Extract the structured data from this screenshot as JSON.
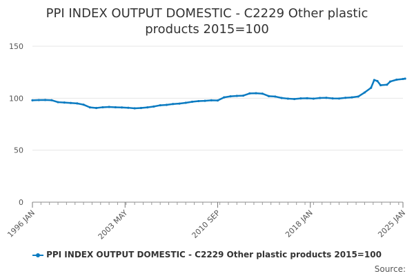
{
  "chart_data": {
    "type": "line",
    "title": "PPI INDEX OUTPUT DOMESTIC - C2229 Other plastic products 2015=100",
    "xlabel": "",
    "ylabel": "",
    "ylim": [
      0,
      150
    ],
    "yticks": [
      "0",
      "50",
      "100",
      "150"
    ],
    "x_tick_labels": [
      "1996 JAN",
      "2003 MAY",
      "2010 SEP",
      "2018 JAN",
      "2025 JAN"
    ],
    "grid": true,
    "legend_position": "bottom",
    "color": "#0b7bc1",
    "source_label": "Source:",
    "series": [
      {
        "name": "PPI INDEX OUTPUT DOMESTIC - C2229 Other plastic products 2015=100",
        "points": [
          [
            "1996-01",
            98.0
          ],
          [
            "1996-07",
            98.2
          ],
          [
            "1997-01",
            98.3
          ],
          [
            "1997-07",
            98.1
          ],
          [
            "1998-01",
            96.2
          ],
          [
            "1998-07",
            95.8
          ],
          [
            "1999-01",
            95.4
          ],
          [
            "1999-07",
            95.0
          ],
          [
            "2000-01",
            93.8
          ],
          [
            "2000-07",
            91.2
          ],
          [
            "2001-01",
            90.6
          ],
          [
            "2001-07",
            91.3
          ],
          [
            "2002-01",
            91.6
          ],
          [
            "2002-07",
            91.3
          ],
          [
            "2003-01",
            91.1
          ],
          [
            "2003-07",
            90.8
          ],
          [
            "2004-01",
            90.3
          ],
          [
            "2004-07",
            90.6
          ],
          [
            "2005-01",
            91.2
          ],
          [
            "2005-07",
            92.0
          ],
          [
            "2006-01",
            93.2
          ],
          [
            "2006-07",
            93.6
          ],
          [
            "2007-01",
            94.4
          ],
          [
            "2007-07",
            94.8
          ],
          [
            "2008-01",
            95.6
          ],
          [
            "2008-07",
            96.6
          ],
          [
            "2009-01",
            97.2
          ],
          [
            "2009-07",
            97.5
          ],
          [
            "2010-01",
            98.0
          ],
          [
            "2010-07",
            97.8
          ],
          [
            "2011-01",
            100.8
          ],
          [
            "2011-07",
            101.8
          ],
          [
            "2012-01",
            102.2
          ],
          [
            "2012-07",
            102.5
          ],
          [
            "2013-01",
            104.6
          ],
          [
            "2013-07",
            104.8
          ],
          [
            "2014-01",
            104.4
          ],
          [
            "2014-07",
            102.0
          ],
          [
            "2015-01",
            101.6
          ],
          [
            "2015-07",
            100.2
          ],
          [
            "2016-01",
            99.6
          ],
          [
            "2016-07",
            99.2
          ],
          [
            "2017-01",
            99.8
          ],
          [
            "2017-07",
            100.0
          ],
          [
            "2018-01",
            99.6
          ],
          [
            "2018-07",
            100.2
          ],
          [
            "2019-01",
            100.4
          ],
          [
            "2019-07",
            99.8
          ],
          [
            "2020-01",
            99.7
          ],
          [
            "2020-07",
            100.4
          ],
          [
            "2021-01",
            100.8
          ],
          [
            "2021-07",
            101.6
          ],
          [
            "2022-01",
            105.5
          ],
          [
            "2022-07",
            110.0
          ],
          [
            "2022-10",
            117.5
          ],
          [
            "2023-01",
            116.5
          ],
          [
            "2023-04",
            112.5
          ],
          [
            "2023-10",
            113.0
          ],
          [
            "2024-01",
            116.0
          ],
          [
            "2024-07",
            117.8
          ],
          [
            "2025-01",
            118.5
          ],
          [
            "2025-03",
            118.8
          ]
        ]
      }
    ]
  }
}
